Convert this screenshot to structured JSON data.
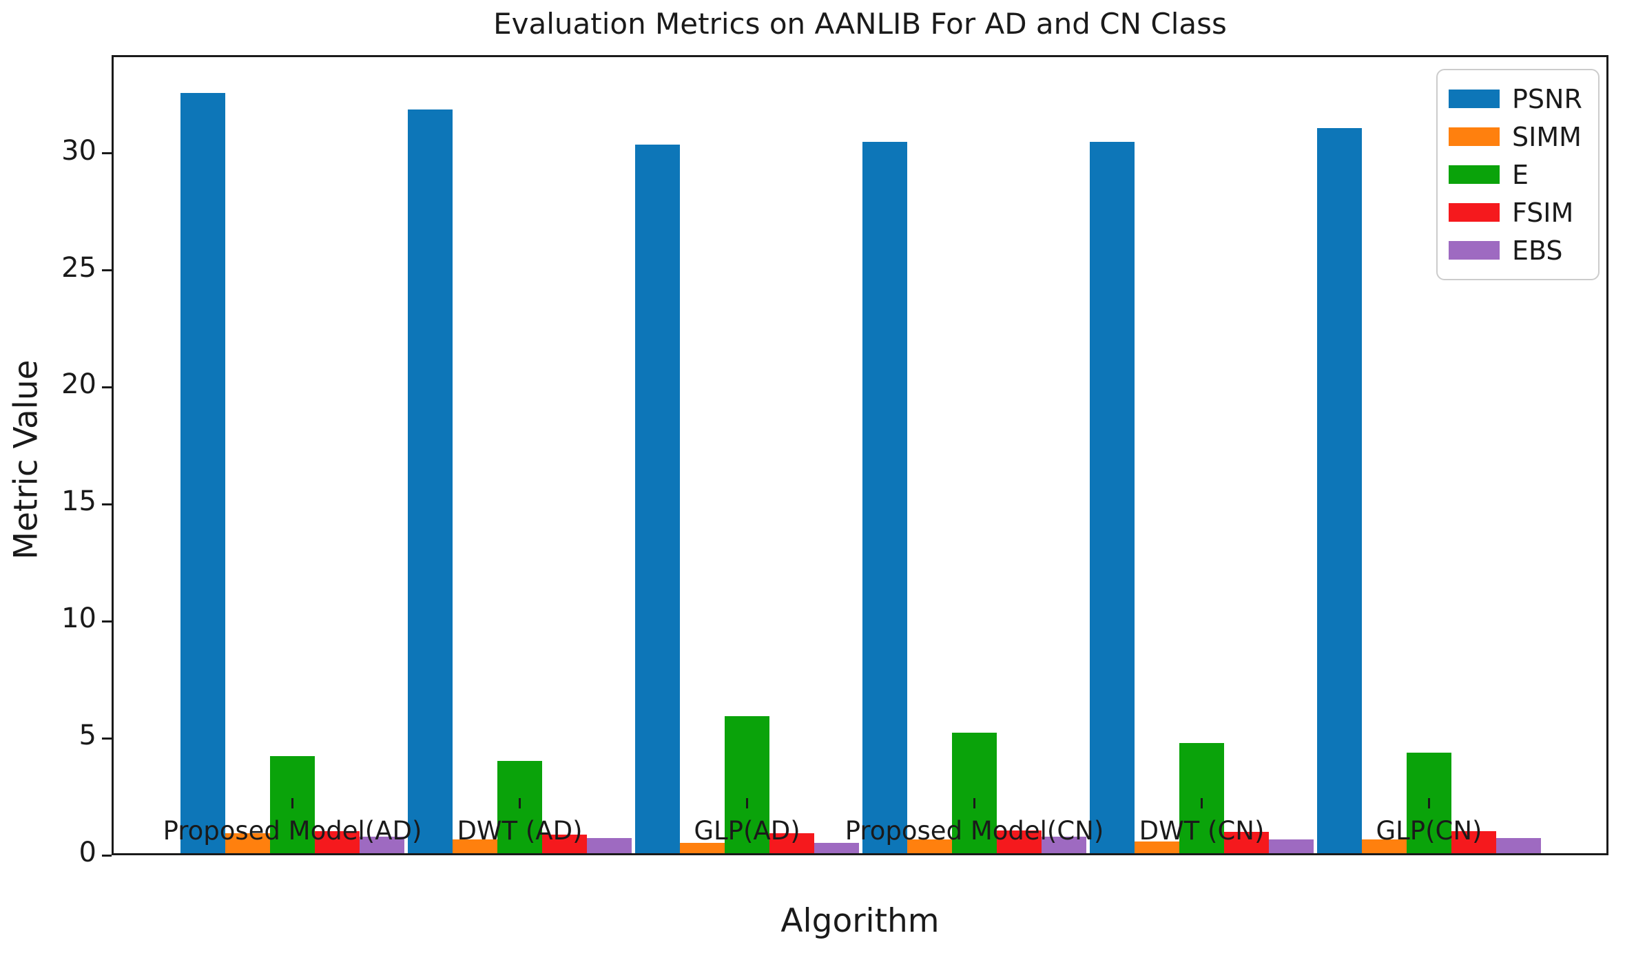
{
  "chart_data": {
    "type": "bar",
    "title": "Evaluation Metrics on AANLIB For AD and CN Class",
    "xlabel": "Algorithm",
    "ylabel": "Metric Value",
    "categories": [
      "Proposed Model(AD)",
      "DWT (AD)",
      "GLP(AD)",
      "Proposed Model(CN)",
      "DWT (CN)",
      "GLP(CN)"
    ],
    "series": [
      {
        "name": "PSNR",
        "color": "#0d76b8",
        "values": [
          32.5,
          31.8,
          30.3,
          30.4,
          30.4,
          31.0
        ]
      },
      {
        "name": "SIMM",
        "color": "#ff800e",
        "values": [
          0.85,
          0.6,
          0.45,
          0.6,
          0.5,
          0.6
        ]
      },
      {
        "name": "E",
        "color": "#0aa30a",
        "values": [
          4.15,
          3.95,
          5.85,
          5.15,
          4.7,
          4.3
        ]
      },
      {
        "name": "FSIM",
        "color": "#f5191d",
        "values": [
          0.95,
          0.78,
          0.85,
          0.97,
          0.9,
          0.95
        ]
      },
      {
        "name": "EBS",
        "color": "#9e6ac1",
        "values": [
          0.7,
          0.65,
          0.45,
          0.7,
          0.6,
          0.65
        ]
      }
    ],
    "ylim": [
      0,
      34.2
    ],
    "yticks": [
      0,
      5,
      10,
      15,
      20,
      25,
      30
    ],
    "legend_position": "upper right",
    "grid": false,
    "text_color": "#1a1a1a"
  }
}
